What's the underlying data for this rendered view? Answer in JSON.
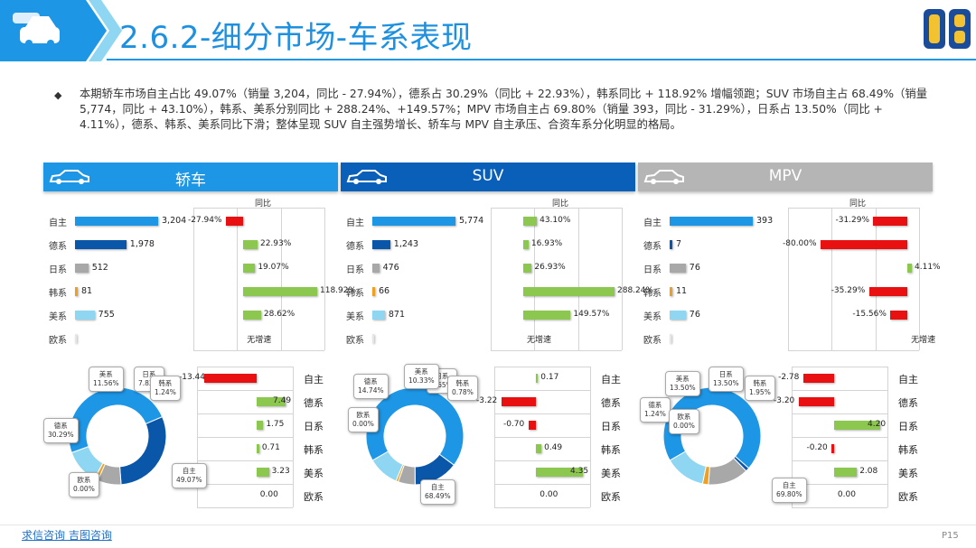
{
  "header": {
    "title": "2.6.2-细分市场-车系表现",
    "logo_text": "DB"
  },
  "summary": "本期轿车市场自主占比 49.07%（销量 3,204，同比 - 27.94%），德系占 30.29%（同比 + 22.93%），韩系同比 + 118.92% 增幅领跑；SUV 市场自主占 68.49%（销量 5,774，同比 + 43.10%），韩系、美系分别同比 + 288.24%、+149.57%；MPV 市场自主占 69.80%（销量 393，同比 - 31.29%），日系占 13.50%（同比 + 4.11%），德系、韩系、美系同比下滑；整体呈现 SUV 自主强势增长、轿车与 MPV 自主承压、合资车系分化明显的格局。",
  "bullet": "◆",
  "colors": {
    "blue": "#1e96e6",
    "darkblue": "#0a56a8",
    "gray": "#a8a8a8",
    "gold": "#f0a020",
    "lightblue": "#8fd6f2",
    "green": "#8cc850",
    "red": "#e81010",
    "header_gray": "#b5b5b5"
  },
  "yoy_label": "同比",
  "no_growth_label": "无增速",
  "panels": [
    {
      "name": "轿车",
      "categories": [
        "自主",
        "德系",
        "日系",
        "韩系",
        "美系",
        "欧系"
      ],
      "sales": [
        3204,
        1978,
        512,
        81,
        755,
        0
      ],
      "sales_labels": [
        "3,204",
        "1,978",
        "512",
        "81",
        "755",
        ""
      ],
      "yoy": [
        -27.94,
        22.93,
        19.07,
        118.92,
        28.62,
        null
      ],
      "yoy_labels": [
        "-27.94%",
        "22.93%",
        "19.07%",
        "118.92%",
        "28.62%",
        "无增速"
      ],
      "share_change": [
        -13.44,
        7.49,
        1.75,
        0.71,
        3.23,
        0.0
      ],
      "share_change_labels": [
        "-13.44",
        "7.49",
        "1.75",
        "0.71",
        "3.23",
        "0.00"
      ],
      "donut": {
        "values": [
          49.07,
          30.29,
          7.83,
          1.24,
          11.56,
          0.0
        ],
        "labels": [
          {
            "name": "自主",
            "pct": "49.07%"
          },
          {
            "name": "德系",
            "pct": "30.29%"
          },
          {
            "name": "日系",
            "pct": "7.83%"
          },
          {
            "name": "韩系",
            "pct": "1.24%"
          },
          {
            "name": "美系",
            "pct": "11.56%"
          },
          {
            "name": "欧系",
            "pct": "0.00%"
          }
        ]
      }
    },
    {
      "name": "SUV",
      "categories": [
        "自主",
        "德系",
        "日系",
        "韩系",
        "美系",
        "欧系"
      ],
      "sales": [
        5774,
        1243,
        476,
        66,
        871,
        0
      ],
      "sales_labels": [
        "5,774",
        "1,243",
        "476",
        "66",
        "871",
        ""
      ],
      "yoy": [
        43.1,
        16.93,
        26.93,
        288.24,
        149.57,
        null
      ],
      "yoy_labels": [
        "43.10%",
        "16.93%",
        "26.93%",
        "288.24%",
        "149.57%",
        "无增速"
      ],
      "share_change": [
        0.17,
        -3.22,
        -0.7,
        0.49,
        4.35,
        0.0
      ],
      "share_change_labels": [
        "0.17",
        "-3.22",
        "-0.70",
        "0.49",
        "4.35",
        "0.00"
      ],
      "donut": {
        "values": [
          68.49,
          14.74,
          5.65,
          0.78,
          10.33,
          0.0
        ],
        "labels": [
          {
            "name": "自主",
            "pct": "68.49%"
          },
          {
            "name": "德系",
            "pct": "14.74%"
          },
          {
            "name": "日系",
            "pct": "5.65%"
          },
          {
            "name": "韩系",
            "pct": "0.78%"
          },
          {
            "name": "美系",
            "pct": "10.33%"
          },
          {
            "name": "欧系",
            "pct": "0.00%"
          }
        ]
      }
    },
    {
      "name": "MPV",
      "categories": [
        "自主",
        "德系",
        "日系",
        "韩系",
        "美系",
        "欧系"
      ],
      "sales": [
        393,
        7,
        76,
        11,
        76,
        0
      ],
      "sales_labels": [
        "393",
        "7",
        "76",
        "11",
        "76",
        ""
      ],
      "yoy": [
        -31.29,
        -80.0,
        4.11,
        -35.29,
        -15.56,
        null
      ],
      "yoy_labels": [
        "-31.29%",
        "-80.00%",
        "4.11%",
        "-35.29%",
        "-15.56%",
        "无增速"
      ],
      "share_change": [
        -2.78,
        -3.2,
        4.2,
        -0.2,
        2.08,
        0.0
      ],
      "share_change_labels": [
        "-2.78",
        "-3.20",
        "4.20",
        "-0.20",
        "2.08",
        "0.00"
      ],
      "donut": {
        "values": [
          69.8,
          1.24,
          13.5,
          1.95,
          13.5,
          0.0
        ],
        "labels": [
          {
            "name": "自主",
            "pct": "69.80%"
          },
          {
            "name": "德系",
            "pct": "1.24%"
          },
          {
            "name": "日系",
            "pct": "13.50%"
          },
          {
            "name": "韩系",
            "pct": "1.95%"
          },
          {
            "name": "美系",
            "pct": "13.50%"
          },
          {
            "name": "欧系",
            "pct": "0.00%"
          }
        ]
      }
    }
  ],
  "footer": {
    "links": "求信咨询  吉图咨询",
    "page": "P15"
  }
}
